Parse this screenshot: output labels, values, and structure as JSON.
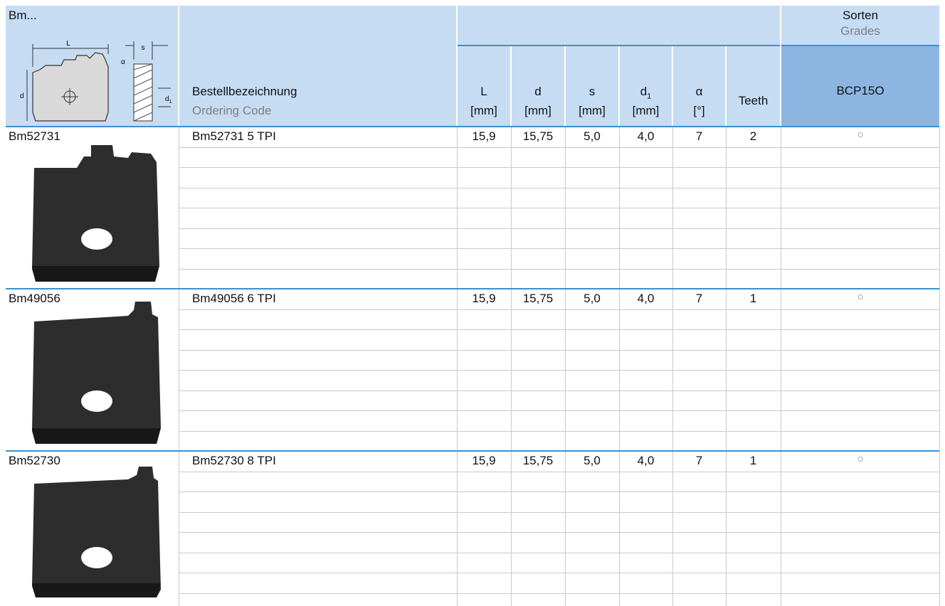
{
  "header": {
    "family": "Bm...",
    "code_label": "Bestellbezeichnung",
    "code_label_en": "Ordering Code",
    "grades_label": "Sorten",
    "grades_label_en": "Grades",
    "grade": "BCP15O",
    "columns": [
      {
        "symbol": "L",
        "unit": "[mm]"
      },
      {
        "symbol": "d",
        "unit": "[mm]"
      },
      {
        "symbol": "s",
        "unit": "[mm]"
      },
      {
        "symbol": "d",
        "sub": "1",
        "unit": "[mm]"
      },
      {
        "symbol": "α",
        "unit": "[°]"
      },
      {
        "symbol": "Teeth"
      }
    ],
    "sketch": {
      "L": "L",
      "s": "s",
      "alpha": "α",
      "d": "d",
      "d1": "d",
      "d1_sub": "1"
    }
  },
  "rows": [
    {
      "item": "Bm52731",
      "code": "Bm52731 5 TPI",
      "values": [
        "15,9",
        "15,75",
        "5,0",
        "4,0",
        "7",
        "2"
      ],
      "grade_mark": "○"
    },
    {
      "item": "Bm49056",
      "code": "Bm49056 6 TPI",
      "values": [
        "15,9",
        "15,75",
        "5,0",
        "4,0",
        "7",
        "1"
      ],
      "grade_mark": "○"
    },
    {
      "item": "Bm52730",
      "code": "Bm52730 8 TPI",
      "values": [
        "15,9",
        "15,75",
        "5,0",
        "4,0",
        "7",
        "1"
      ],
      "grade_mark": "○"
    }
  ]
}
